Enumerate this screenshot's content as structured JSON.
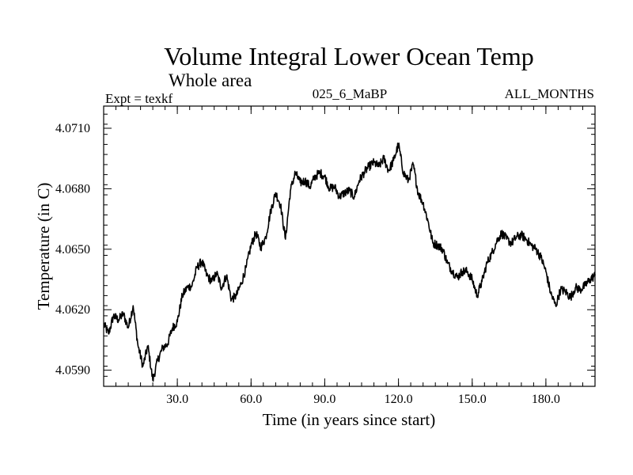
{
  "chart_data": {
    "type": "line",
    "title": "Volume Integral Lower Ocean Temp",
    "subtitle": "Whole area",
    "expt_label": "Expt = texkf",
    "run_label": "025_6_MaBP",
    "months_label": "ALL_MONTHS",
    "xlabel": "Time (in years since start)",
    "ylabel": "Temperature (in C)",
    "xlim": [
      0,
      200
    ],
    "ylim": [
      4.0582,
      4.0721
    ],
    "x_ticks": [
      30,
      60,
      90,
      120,
      150,
      180
    ],
    "x_tick_labels": [
      "30.0",
      "60.0",
      "90.0",
      "120.0",
      "150.0",
      "180.0"
    ],
    "y_ticks": [
      4.059,
      4.062,
      4.065,
      4.068,
      4.071
    ],
    "y_tick_labels": [
      "4.0590",
      "4.0620",
      "4.0650",
      "4.0680",
      "4.0710"
    ],
    "series": [
      {
        "name": "Volume integral lower ocean temperature",
        "color": "#000000",
        "x": [
          0,
          2,
          4,
          6,
          8,
          10,
          12,
          14,
          16,
          18,
          20,
          22,
          24,
          26,
          28,
          30,
          32,
          34,
          36,
          38,
          40,
          42,
          44,
          46,
          48,
          50,
          52,
          54,
          56,
          58,
          60,
          62,
          64,
          66,
          68,
          70,
          72,
          74,
          76,
          78,
          80,
          82,
          84,
          86,
          88,
          90,
          92,
          94,
          96,
          98,
          100,
          102,
          104,
          106,
          108,
          110,
          112,
          114,
          116,
          118,
          120,
          122,
          124,
          126,
          128,
          130,
          132,
          134,
          136,
          138,
          140,
          142,
          144,
          146,
          148,
          150,
          152,
          154,
          156,
          158,
          160,
          162,
          164,
          166,
          168,
          170,
          172,
          174,
          176,
          178,
          180,
          182,
          184,
          186,
          188,
          190,
          192,
          194,
          196,
          198,
          200
        ],
        "y": [
          4.0613,
          4.0608,
          4.0617,
          4.0615,
          4.0618,
          4.0611,
          4.0622,
          4.0602,
          4.0592,
          4.0602,
          4.0585,
          4.0595,
          4.0601,
          4.0603,
          4.0611,
          4.0614,
          4.0627,
          4.0631,
          4.0632,
          4.0641,
          4.0644,
          4.0637,
          4.0634,
          4.0638,
          4.0631,
          4.0637,
          4.0625,
          4.0627,
          4.0633,
          4.0641,
          4.0652,
          4.0658,
          4.0651,
          4.0656,
          4.0669,
          4.0678,
          4.0672,
          4.0655,
          4.0679,
          4.0688,
          4.0683,
          4.0684,
          4.0681,
          4.0686,
          4.0688,
          4.0686,
          4.068,
          4.0681,
          4.0676,
          4.0678,
          4.0679,
          4.0676,
          4.0684,
          4.0688,
          4.0691,
          4.0693,
          4.0691,
          4.0695,
          4.0689,
          4.0694,
          4.0702,
          4.0688,
          4.0684,
          4.0692,
          4.0678,
          4.0673,
          4.0664,
          4.0653,
          4.0652,
          4.065,
          4.0643,
          4.0639,
          4.0636,
          4.0639,
          4.0639,
          4.0635,
          4.0627,
          4.0634,
          4.0643,
          4.0648,
          4.0654,
          4.0658,
          4.0655,
          4.0653,
          4.0656,
          4.0657,
          4.0655,
          4.0652,
          4.065,
          4.0646,
          4.0639,
          4.0628,
          4.0622,
          4.063,
          4.0629,
          4.0626,
          4.0631,
          4.063,
          4.0632,
          4.0635,
          4.0637
        ]
      }
    ]
  }
}
